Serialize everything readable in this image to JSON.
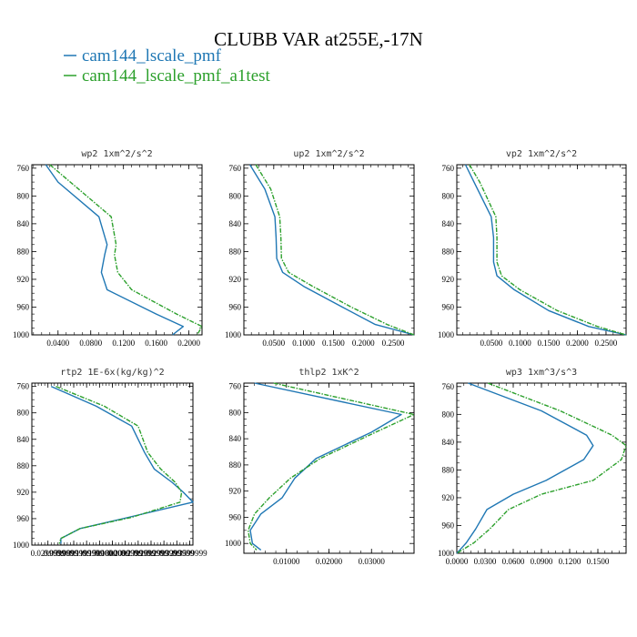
{
  "figure": {
    "title": "CLUBB VAR at255E,-17N",
    "legend": [
      {
        "label": "cam144_lscale_pmf",
        "color": "#1f77b4"
      },
      {
        "label": "cam144_lscale_pmf_a1test",
        "color": "#2ca02c"
      }
    ]
  },
  "chart_data": [
    {
      "type": "line",
      "title": "wp2  1xm^2/s^2",
      "xlim": [
        0.008,
        0.216
      ],
      "ylim": [
        755,
        1000
      ],
      "xticks": [
        0.04,
        0.08,
        0.12,
        0.16,
        0.2
      ],
      "xtick_labels": [
        "0.0400",
        "0.0800",
        "0.1200",
        "0.1600",
        "0.2000"
      ],
      "yticks": [
        760,
        800,
        840,
        880,
        920,
        960,
        1000
      ],
      "y": [
        755,
        780,
        830,
        870,
        885,
        910,
        935,
        970,
        988,
        1000
      ],
      "series": [
        {
          "name": "cam144_lscale_pmf",
          "color": "#1f77b4",
          "dash": false,
          "x": [
            0.025,
            0.04,
            0.09,
            0.1,
            0.097,
            0.093,
            0.1,
            0.16,
            0.193,
            0.18
          ]
        },
        {
          "name": "cam144_lscale_pmf_a1test",
          "color": "#2ca02c",
          "dash": true,
          "x": [
            0.03,
            0.055,
            0.105,
            0.111,
            0.109,
            0.113,
            0.13,
            0.185,
            0.216,
            0.21
          ]
        }
      ]
    },
    {
      "type": "line",
      "title": "up2  1xm^2/s^2",
      "xlim": [
        0.0,
        0.285
      ],
      "ylim": [
        755,
        1000
      ],
      "xticks": [
        0.05,
        0.1,
        0.15,
        0.2,
        0.25
      ],
      "xtick_labels": [
        "0.0500",
        "0.1000",
        "0.1500",
        "0.2000",
        "0.2500"
      ],
      "yticks": [
        760,
        800,
        840,
        880,
        920,
        960,
        1000
      ],
      "y": [
        755,
        790,
        830,
        860,
        890,
        910,
        930,
        960,
        985,
        1000
      ],
      "series": [
        {
          "name": "cam144_lscale_pmf",
          "color": "#1f77b4",
          "dash": false,
          "x": [
            0.01,
            0.035,
            0.052,
            0.054,
            0.055,
            0.065,
            0.1,
            0.165,
            0.22,
            0.285
          ]
        },
        {
          "name": "cam144_lscale_pmf_a1test",
          "color": "#2ca02c",
          "dash": true,
          "x": [
            0.02,
            0.045,
            0.06,
            0.062,
            0.063,
            0.075,
            0.115,
            0.18,
            0.24,
            0.285
          ]
        }
      ]
    },
    {
      "type": "line",
      "title": "vp2  1xm^2/s^2",
      "xlim": [
        -0.01,
        0.285
      ],
      "ylim": [
        755,
        1000
      ],
      "xticks": [
        0.05,
        0.1,
        0.15,
        0.2,
        0.25
      ],
      "xtick_labels": [
        "0.0500",
        "0.1000",
        "0.1500",
        "0.2000",
        "0.2500"
      ],
      "yticks": [
        760,
        800,
        840,
        880,
        920,
        960,
        1000
      ],
      "y": [
        755,
        780,
        830,
        860,
        895,
        915,
        935,
        965,
        988,
        1000
      ],
      "series": [
        {
          "name": "cam144_lscale_pmf",
          "color": "#1f77b4",
          "dash": false,
          "x": [
            0.005,
            0.02,
            0.05,
            0.054,
            0.054,
            0.06,
            0.09,
            0.15,
            0.22,
            0.285
          ]
        },
        {
          "name": "cam144_lscale_pmf_a1test",
          "color": "#2ca02c",
          "dash": true,
          "x": [
            0.012,
            0.03,
            0.058,
            0.06,
            0.06,
            0.068,
            0.1,
            0.165,
            0.235,
            0.285
          ]
        }
      ]
    },
    {
      "type": "line",
      "title": "rtp2  1E-6x(kg/kg)^2",
      "xlim": [
        0.0,
        1.0
      ],
      "ylim": [
        755,
        1000
      ],
      "xticks": [
        0.1,
        0.18,
        0.26,
        0.34,
        0.42,
        0.5,
        0.58,
        0.66,
        0.74,
        0.82,
        0.9,
        0.98
      ],
      "xtick_labels": [
        "0.0299999",
        "0.0599999",
        "0.0899999",
        "0.1199999",
        "0.1500000",
        "0.1800000",
        "0.2099999",
        "0.2399999",
        "0.2699999",
        "0.2999999",
        "0.3299999",
        "0.3599999"
      ],
      "yticks": [
        760,
        800,
        840,
        880,
        920,
        960,
        1000
      ],
      "y": [
        760,
        790,
        820,
        860,
        885,
        905,
        920,
        935,
        958,
        975,
        990,
        998
      ],
      "series": [
        {
          "name": "cam144_lscale_pmf",
          "color": "#1f77b4",
          "dash": false,
          "x": [
            0.12,
            0.4,
            0.62,
            0.7,
            0.76,
            0.87,
            0.94,
            1.0,
            0.6,
            0.3,
            0.18,
            0.18
          ]
        },
        {
          "name": "cam144_lscale_pmf_a1test",
          "color": "#2ca02c",
          "dash": true,
          "x": [
            0.15,
            0.45,
            0.66,
            0.72,
            0.8,
            0.89,
            0.93,
            0.92,
            0.62,
            0.3,
            0.18,
            0.17
          ]
        }
      ]
    },
    {
      "type": "line",
      "title": "thlp2  1xK^2",
      "xlim": [
        0.0,
        0.04
      ],
      "ylim": [
        755,
        1015
      ],
      "xticks": [
        0.01,
        0.02,
        0.03
      ],
      "xtick_labels": [
        "0.01000",
        "0.02000",
        "0.03000"
      ],
      "yticks": [
        760,
        800,
        840,
        880,
        920,
        960,
        1000
      ],
      "y": [
        755,
        803,
        830,
        870,
        900,
        930,
        955,
        980,
        1000,
        1010
      ],
      "series": [
        {
          "name": "cam144_lscale_pmf",
          "color": "#1f77b4",
          "dash": false,
          "x": [
            0.0025,
            0.037,
            0.03,
            0.017,
            0.012,
            0.009,
            0.004,
            0.0015,
            0.002,
            0.004
          ]
        },
        {
          "name": "cam144_lscale_pmf_a1test",
          "color": "#2ca02c",
          "dash": true,
          "x": [
            0.007,
            0.04,
            0.031,
            0.018,
            0.011,
            0.006,
            0.0025,
            0.001,
            0.0015,
            0.003
          ]
        }
      ]
    },
    {
      "type": "line",
      "title": "wp3  1xm^3/s^3",
      "xlim": [
        0.0,
        0.18
      ],
      "ylim": [
        755,
        1000
      ],
      "xticks": [
        0.0,
        0.03,
        0.06,
        0.09,
        0.12,
        0.15
      ],
      "xtick_labels": [
        "0.0000",
        "0.0300",
        "0.0600",
        "0.0900",
        "0.1200",
        "0.1500"
      ],
      "yticks": [
        760,
        800,
        840,
        880,
        920,
        960,
        1000
      ],
      "y": [
        755,
        795,
        830,
        845,
        865,
        895,
        915,
        937,
        965,
        985,
        1000
      ],
      "series": [
        {
          "name": "cam144_lscale_pmf",
          "color": "#1f77b4",
          "dash": false,
          "x": [
            0.012,
            0.09,
            0.138,
            0.145,
            0.135,
            0.095,
            0.06,
            0.032,
            0.02,
            0.01,
            0.0
          ]
        },
        {
          "name": "cam144_lscale_pmf_a1test",
          "color": "#2ca02c",
          "dash": true,
          "x": [
            0.033,
            0.11,
            0.165,
            0.18,
            0.175,
            0.145,
            0.09,
            0.055,
            0.035,
            0.018,
            0.0
          ]
        }
      ]
    }
  ]
}
